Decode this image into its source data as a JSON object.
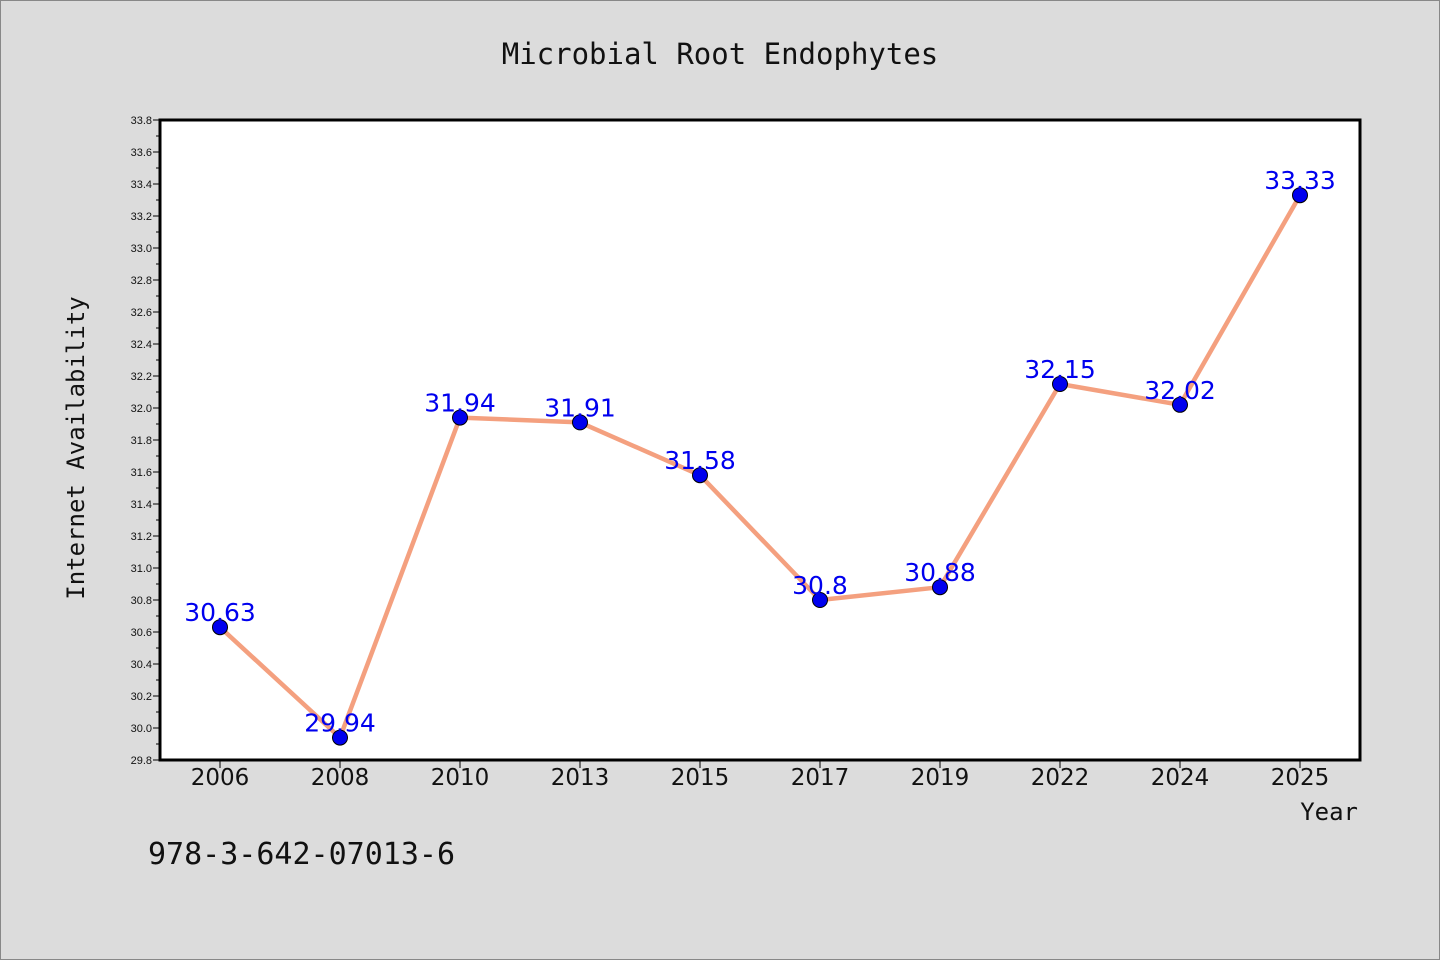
{
  "chart_data": {
    "type": "line",
    "title": "Microbial Root Endophytes",
    "xlabel": "Year",
    "ylabel": "Internet Availability",
    "categories": [
      "2006",
      "2008",
      "2010",
      "2013",
      "2015",
      "2017",
      "2019",
      "2022",
      "2024",
      "2025"
    ],
    "series": [
      {
        "values": [
          30.63,
          29.94,
          31.94,
          31.91,
          31.58,
          30.8,
          30.88,
          32.15,
          32.02,
          33.33
        ],
        "data_labels": [
          "30.63",
          "29.94",
          "31.94",
          "31.91",
          "31.58",
          "30.8",
          "30.88",
          "32.15",
          "32.02",
          "33.33"
        ]
      }
    ],
    "ylim": [
      29.8,
      33.8
    ],
    "yticks": [
      "29.8",
      "30.0",
      "30.2",
      "30.4",
      "30.6",
      "30.8",
      "31.0",
      "31.2",
      "31.4",
      "31.6",
      "31.8",
      "32.0",
      "32.2",
      "32.4",
      "32.6",
      "32.8",
      "33.0",
      "33.2",
      "33.4",
      "33.6",
      "33.8"
    ],
    "grid": false,
    "legend": "none",
    "colors": {
      "line": "#f4a07f",
      "marker": "#0000ee",
      "label": "#0000ee",
      "plot_bg": "#ffffff",
      "page_bg": "#dcdcdc"
    }
  },
  "footnote": "978-3-642-07013-6"
}
